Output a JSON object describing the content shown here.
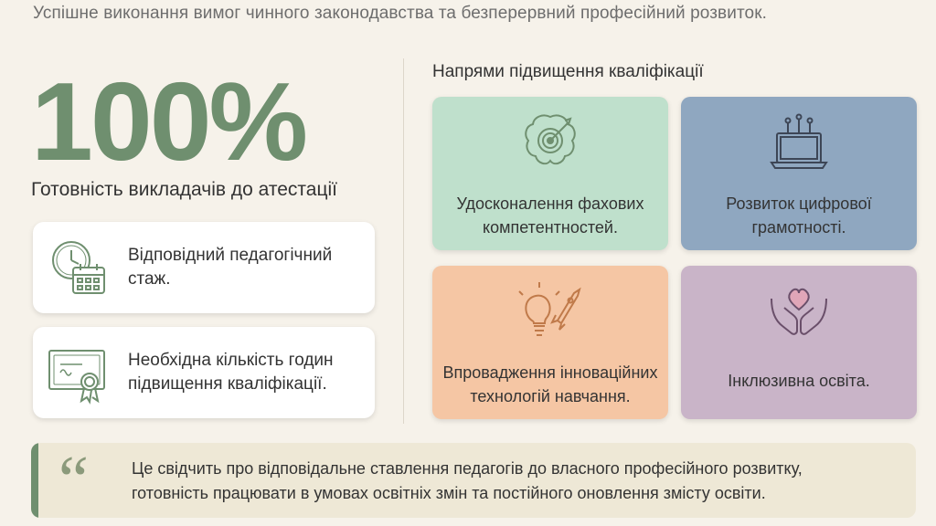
{
  "header": {
    "subtitle": "Успішне виконання вимог чинного законодавства та безперервний професійний розвиток."
  },
  "readiness": {
    "percent": "100%",
    "label": "Готовність викладачів до атестації",
    "requirements": [
      {
        "icon": "clock-calendar-icon",
        "text_line1": "Відповідний педагогічний",
        "text_line2": "стаж."
      },
      {
        "icon": "certificate-icon",
        "text_line1": "Необхідна кількість годин",
        "text_line2": "підвищення кваліфікації."
      }
    ]
  },
  "directions": {
    "title": "Напрями підвищення кваліфікації",
    "tiles": [
      {
        "icon": "brain-target-icon",
        "line1": "Удосконалення фахових",
        "line2": "компетентностей.",
        "color": "#bfe0cc"
      },
      {
        "icon": "laptop-network-icon",
        "line1": "Розвиток цифрової",
        "line2": "грамотності.",
        "color": "#8fa7c0"
      },
      {
        "icon": "lightbulb-rocket-icon",
        "line1": "Впровадження інноваційних",
        "line2": "технологій навчання.",
        "color": "#f5c6a4"
      },
      {
        "icon": "heart-hands-icon",
        "line1": "Інклюзивна освіта.",
        "line2": "",
        "color": "#c9b4c8"
      }
    ]
  },
  "quote": {
    "mark": "“",
    "line1": "Це свідчить про відповідальне ставлення педагогів до власного професійного розвитку,",
    "line2": "готовність працювати в умовах освітніх змін та постійного оновлення змісту освіти."
  },
  "colors": {
    "accent_green": "#6f8f6f",
    "background": "#f6f2ea",
    "quote_bg": "#eee8d6"
  }
}
